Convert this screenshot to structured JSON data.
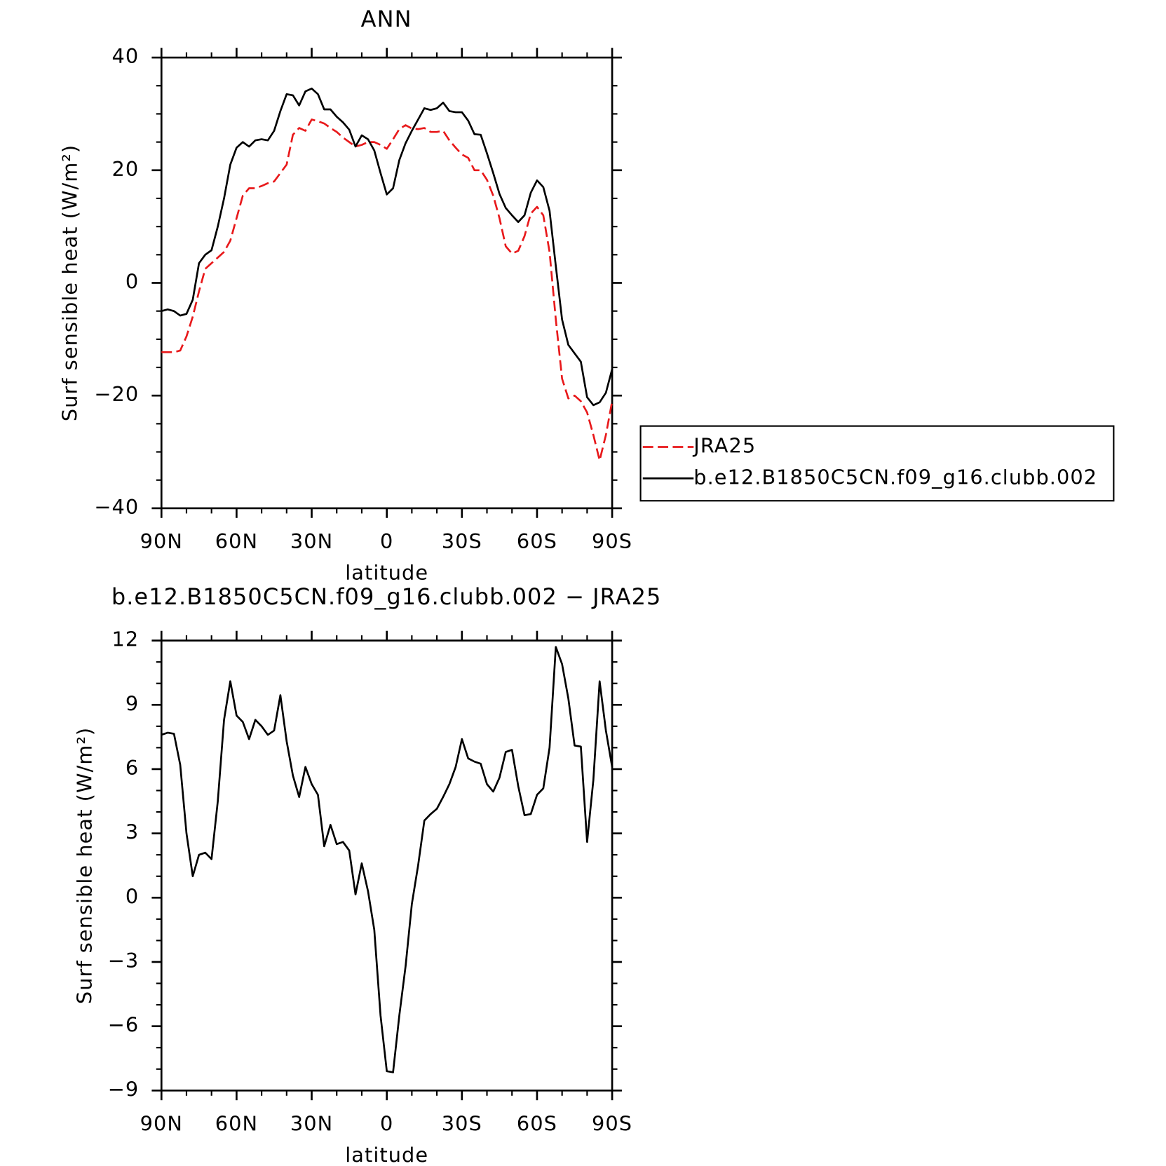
{
  "chart_data": [
    {
      "type": "line",
      "title": "ANN",
      "xlabel": "latitude",
      "ylabel": "Surf sensible heat (W/m²)",
      "x": [
        90,
        87.5,
        85,
        82.5,
        80,
        77.5,
        75,
        72.5,
        70,
        67.5,
        65,
        62.5,
        60,
        57.5,
        55,
        52.5,
        50,
        47.5,
        45,
        42.5,
        40,
        37.5,
        35,
        32.5,
        30,
        27.5,
        25,
        22.5,
        20,
        17.5,
        15,
        12.5,
        10,
        7.5,
        5,
        2.5,
        0,
        -2.5,
        -5,
        -7.5,
        -10,
        -12.5,
        -15,
        -17.5,
        -20,
        -22.5,
        -25,
        -27.5,
        -30,
        -32.5,
        -35,
        -37.5,
        -40,
        -42.5,
        -45,
        -47.5,
        -50,
        -52.5,
        -55,
        -57.5,
        -60,
        -62.5,
        -65,
        -67.5,
        -70,
        -72.5,
        -75,
        -77.5,
        -80,
        -82.5,
        -85,
        -87.5,
        -90
      ],
      "series": [
        {
          "name": "JRA25",
          "color": "#e8191b",
          "dash": true,
          "values": [
            -12.3,
            -12.3,
            -12.3,
            -12,
            -9.5,
            -6,
            -1.5,
            2.5,
            3.5,
            4.5,
            5.5,
            7.5,
            11.5,
            15.5,
            16.8,
            16.8,
            17.2,
            17.7,
            18,
            19.5,
            21,
            26.3,
            27.5,
            27,
            29,
            28.7,
            28.3,
            27.5,
            26.8,
            25.8,
            25,
            24.2,
            24.5,
            25,
            25,
            24.5,
            23.8,
            25.5,
            27.3,
            28,
            27.4,
            27.3,
            27.5,
            26.8,
            26.8,
            27,
            25.3,
            24,
            22.8,
            22.2,
            20,
            20,
            18.3,
            15.5,
            11.5,
            6.5,
            5.2,
            5.7,
            8.3,
            12.3,
            13.5,
            12,
            5.5,
            -6.5,
            -17,
            -20.5,
            -20,
            -21,
            -23,
            -27,
            -31.5,
            -27,
            -21
          ]
        },
        {
          "name": "b.e12.B1850C5CN.f09_g16.clubb.002",
          "color": "#000000",
          "dash": false,
          "values": [
            -5,
            -4.7,
            -5,
            -5.8,
            -5.5,
            -3,
            3.5,
            5,
            5.8,
            10,
            15,
            21,
            24,
            25,
            24.2,
            25.3,
            25.5,
            25.3,
            27,
            30.5,
            33.5,
            33.3,
            31.5,
            34,
            34.5,
            33.5,
            30.8,
            30.8,
            29.5,
            28.5,
            27.2,
            24.2,
            26.2,
            25.5,
            23.5,
            19.5,
            15.7,
            16.8,
            21.8,
            24.8,
            27,
            29,
            31,
            30.7,
            31,
            32,
            30.5,
            30.3,
            30.3,
            28.8,
            26.4,
            26.3,
            23,
            19.5,
            15.8,
            13.3,
            12,
            10.8,
            12,
            16,
            18.2,
            17,
            12.8,
            3,
            -6.5,
            -11,
            -12.5,
            -14,
            -20.3,
            -21.7,
            -21.2,
            -19.5,
            -15.3
          ]
        }
      ],
      "xlim": [
        90,
        -90
      ],
      "xticks": [
        {
          "value": 90,
          "label": "90N"
        },
        {
          "value": 60,
          "label": "60N"
        },
        {
          "value": 30,
          "label": "30N"
        },
        0,
        {
          "value": -30,
          "label": "30S"
        },
        {
          "value": -60,
          "label": "60S"
        },
        {
          "value": -90,
          "label": "90S"
        }
      ],
      "ylim": [
        -40,
        40
      ],
      "yticks": [
        {
          "value": -40,
          "label": "−40"
        },
        {
          "value": -20,
          "label": "−20"
        },
        0,
        20,
        40
      ],
      "legend": "right"
    },
    {
      "type": "line",
      "title": "b.e12.B1850C5CN.f09_g16.clubb.002 − JRA25",
      "xlabel": "latitude",
      "ylabel": "Surf sensible heat (W/m²)",
      "x": [
        90,
        87.5,
        85,
        82.5,
        80,
        77.5,
        75,
        72.5,
        70,
        67.5,
        65,
        62.5,
        60,
        57.5,
        55,
        52.5,
        50,
        47.5,
        45,
        42.5,
        40,
        37.5,
        35,
        32.5,
        30,
        27.5,
        25,
        22.5,
        20,
        17.5,
        15,
        12.5,
        10,
        7.5,
        5,
        2.5,
        0,
        -2.5,
        -5,
        -7.5,
        -10,
        -12.5,
        -15,
        -17.5,
        -20,
        -22.5,
        -25,
        -27.5,
        -30,
        -32.5,
        -35,
        -37.5,
        -40,
        -42.5,
        -45,
        -47.5,
        -50,
        -52.5,
        -55,
        -57.5,
        -60,
        -62.5,
        -65,
        -67.5,
        -70,
        -72.5,
        -75,
        -77.5,
        -80,
        -82.5,
        -85,
        -87.5,
        -90
      ],
      "series": [
        {
          "color": "#000000",
          "dash": false,
          "values": [
            7.6,
            7.7,
            7.65,
            6.2,
            3,
            1,
            2,
            2.1,
            1.8,
            4.5,
            8.3,
            10.1,
            8.5,
            8.2,
            7.4,
            8.3,
            8,
            7.6,
            7.8,
            9.45,
            7.3,
            5.7,
            4.7,
            6.1,
            5.3,
            4.8,
            2.4,
            3.4,
            2.5,
            2.6,
            2.2,
            0.15,
            1.6,
            0.3,
            -1.5,
            -5.5,
            -8.1,
            -8.15,
            -5.5,
            -3.2,
            -0.3,
            1.5,
            3.6,
            3.9,
            4.15,
            4.7,
            5.3,
            6.1,
            7.4,
            6.5,
            6.35,
            6.25,
            5.3,
            4.95,
            5.6,
            6.8,
            6.9,
            5.2,
            3.85,
            3.9,
            4.8,
            5.1,
            7,
            11.7,
            10.9,
            9.3,
            7.1,
            7.05,
            2.6,
            5.5,
            10.1,
            7.8,
            6.1
          ]
        }
      ],
      "xlim": [
        90,
        -90
      ],
      "xticks": [
        {
          "value": 90,
          "label": "90N"
        },
        {
          "value": 60,
          "label": "60N"
        },
        {
          "value": 30,
          "label": "30N"
        },
        0,
        {
          "value": -30,
          "label": "30S"
        },
        {
          "value": -60,
          "label": "60S"
        },
        {
          "value": -90,
          "label": "90S"
        }
      ],
      "ylim": [
        -9,
        12
      ],
      "yticks": [
        {
          "value": -9,
          "label": "−9"
        },
        {
          "value": -6,
          "label": "−6"
        },
        {
          "value": -3,
          "label": "−3"
        },
        0,
        3,
        6,
        9,
        12
      ]
    }
  ]
}
